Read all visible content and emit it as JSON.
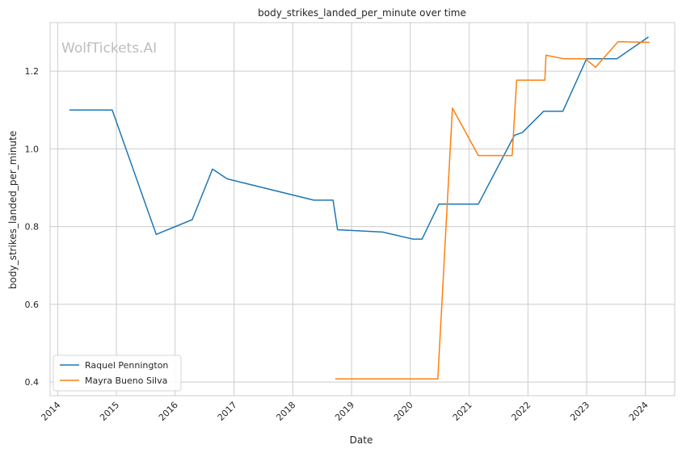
{
  "chart_data": {
    "type": "line",
    "title": "body_strikes_landed_per_minute over time",
    "xlabel": "Date",
    "ylabel": "body_strikes_landed_per_minute",
    "watermark": "WolfTickets.AI",
    "xlim": [
      "2013-11-15",
      "2024-07-01"
    ],
    "ylim": [
      0.365,
      1.325
    ],
    "x_ticks": [
      "2014",
      "2015",
      "2016",
      "2017",
      "2018",
      "2019",
      "2020",
      "2021",
      "2022",
      "2023",
      "2024"
    ],
    "y_ticks": [
      "0.4",
      "0.6",
      "0.8",
      "1.0",
      "1.2"
    ],
    "grid": true,
    "legend_position": "lower-left",
    "series": [
      {
        "name": "Raquel Pennington",
        "color": "#1f77b4",
        "points": [
          [
            "2014-03-15",
            1.1
          ],
          [
            "2014-12-06",
            1.1
          ],
          [
            "2015-09-05",
            0.78
          ],
          [
            "2016-04-16",
            0.818
          ],
          [
            "2016-08-20",
            0.948
          ],
          [
            "2016-11-19",
            0.923
          ],
          [
            "2018-05-12",
            0.868
          ],
          [
            "2018-09-08",
            0.868
          ],
          [
            "2018-10-06",
            0.792
          ],
          [
            "2019-07-13",
            0.786
          ],
          [
            "2020-01-18",
            0.768
          ],
          [
            "2020-03-14",
            0.768
          ],
          [
            "2020-06-27",
            0.858
          ],
          [
            "2021-02-27",
            0.858
          ],
          [
            "2021-10-09",
            1.035
          ],
          [
            "2021-11-27",
            1.042
          ],
          [
            "2022-04-09",
            1.097
          ],
          [
            "2022-08-06",
            1.097
          ],
          [
            "2022-12-31",
            1.232
          ],
          [
            "2023-07-08",
            1.232
          ],
          [
            "2024-01-20",
            1.288
          ]
        ]
      },
      {
        "name": "Mayra Bueno Silva",
        "color": "#ff7f0e",
        "points": [
          [
            "2018-09-22",
            0.408
          ],
          [
            "2020-06-20",
            0.408
          ],
          [
            "2020-09-19",
            1.105
          ],
          [
            "2021-02-27",
            0.983
          ],
          [
            "2021-09-25",
            0.983
          ],
          [
            "2021-10-23",
            1.177
          ],
          [
            "2022-04-16",
            1.177
          ],
          [
            "2022-04-23",
            1.241
          ],
          [
            "2022-08-13",
            1.232
          ],
          [
            "2022-12-24",
            1.232
          ],
          [
            "2023-02-25",
            1.21
          ],
          [
            "2023-07-15",
            1.276
          ],
          [
            "2024-01-27",
            1.274
          ]
        ]
      }
    ]
  }
}
